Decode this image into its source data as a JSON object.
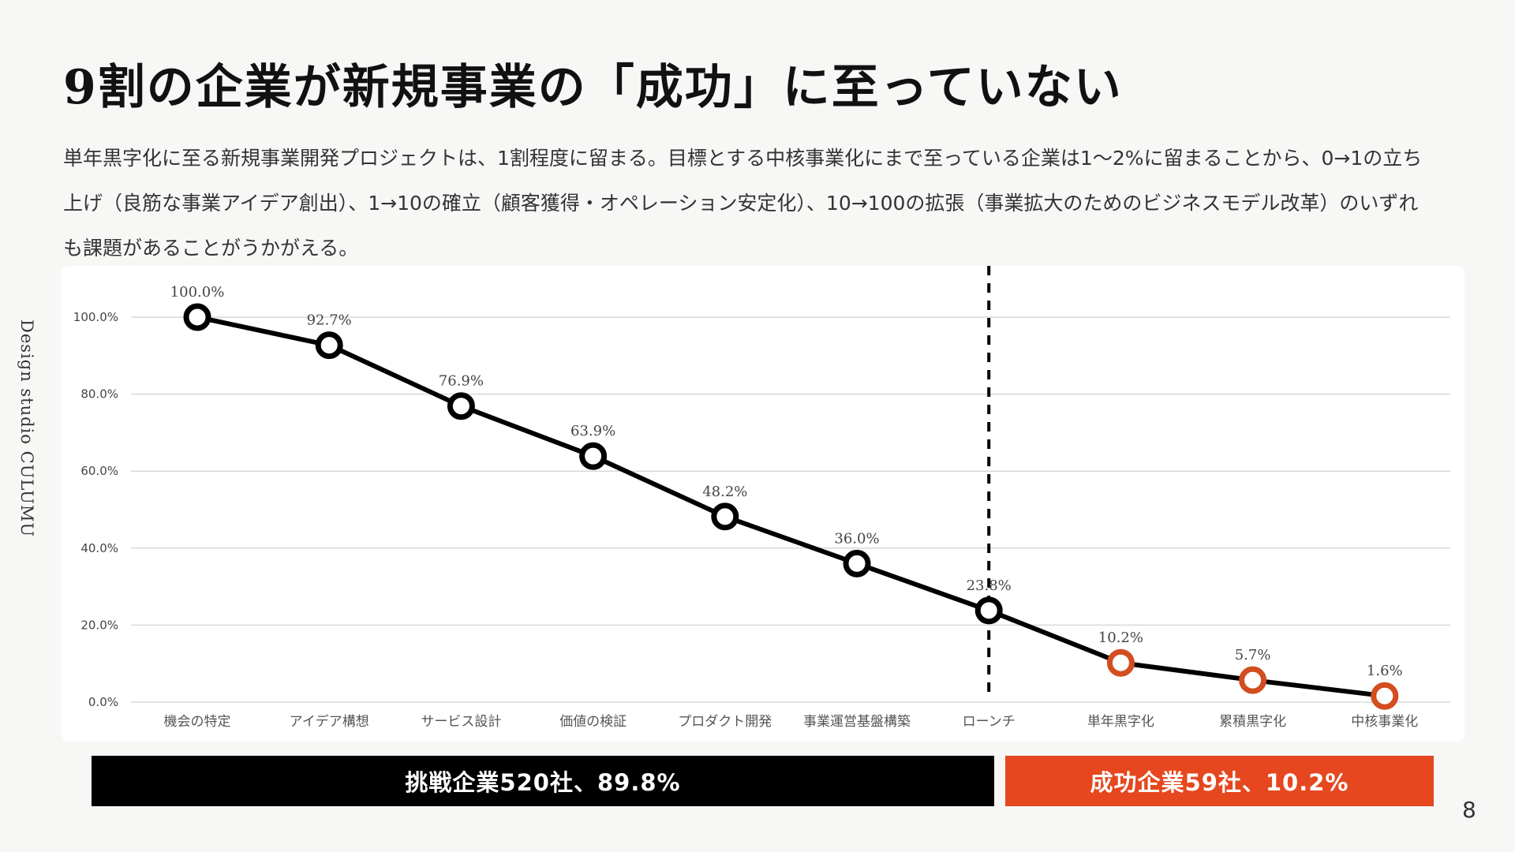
{
  "slide": {
    "title": "9割の企業が新規事業の「成功」に至っていない",
    "lead": "単年黒字化に至る新規事業開発プロジェクトは、1割程度に留まる。目標とする中核事業化にまで至っている企業は1〜2%に留まることから、0→1の立ち上げ（良筋な事業アイデア創出）、1→10の確立（顧客獲得・オペレーション安定化）、10→100の拡張（事業拡大のためのビジネスモデル改革）のいずれも課題があることがうかがえる。",
    "side_label": "Design studio CULUMU",
    "page_number": "8"
  },
  "colors": {
    "line": "#000000",
    "success_marker": "#d24d1f",
    "success_bar": "#e6471e",
    "challenge_bar": "#000000",
    "grid": "#d9d9d9"
  },
  "bars": {
    "challenge": "挑戦企業520社、89.8%",
    "success": "成功企業59社、10.2%"
  },
  "chart_data": {
    "type": "line",
    "categories": [
      "機会の特定",
      "アイデア構想",
      "サービス設計",
      "価値の検証",
      "プロダクト開発",
      "事業運営基盤構築",
      "ローンチ",
      "単年黒字化",
      "累積黒字化",
      "中核事業化"
    ],
    "series": [
      {
        "values": [
          100.0,
          92.7,
          76.9,
          63.9,
          48.2,
          36.0,
          23.8,
          10.2,
          5.7,
          1.6
        ],
        "data_labels": [
          "100.0%",
          "92.7%",
          "76.9%",
          "63.9%",
          "48.2%",
          "36.0%",
          "23.8%",
          "10.2%",
          "5.7%",
          "1.6%"
        ]
      }
    ],
    "y_ticks": [
      0,
      20,
      40,
      60,
      80,
      100
    ],
    "y_tick_labels": [
      "0.0%",
      "20.0%",
      "40.0%",
      "60.0%",
      "80.0%",
      "100.0%"
    ],
    "ylim": [
      0,
      100
    ],
    "grid": true,
    "divider_after_category": "ローンチ",
    "highlight_categories": [
      "単年黒字化",
      "累積黒字化",
      "中核事業化"
    ]
  }
}
